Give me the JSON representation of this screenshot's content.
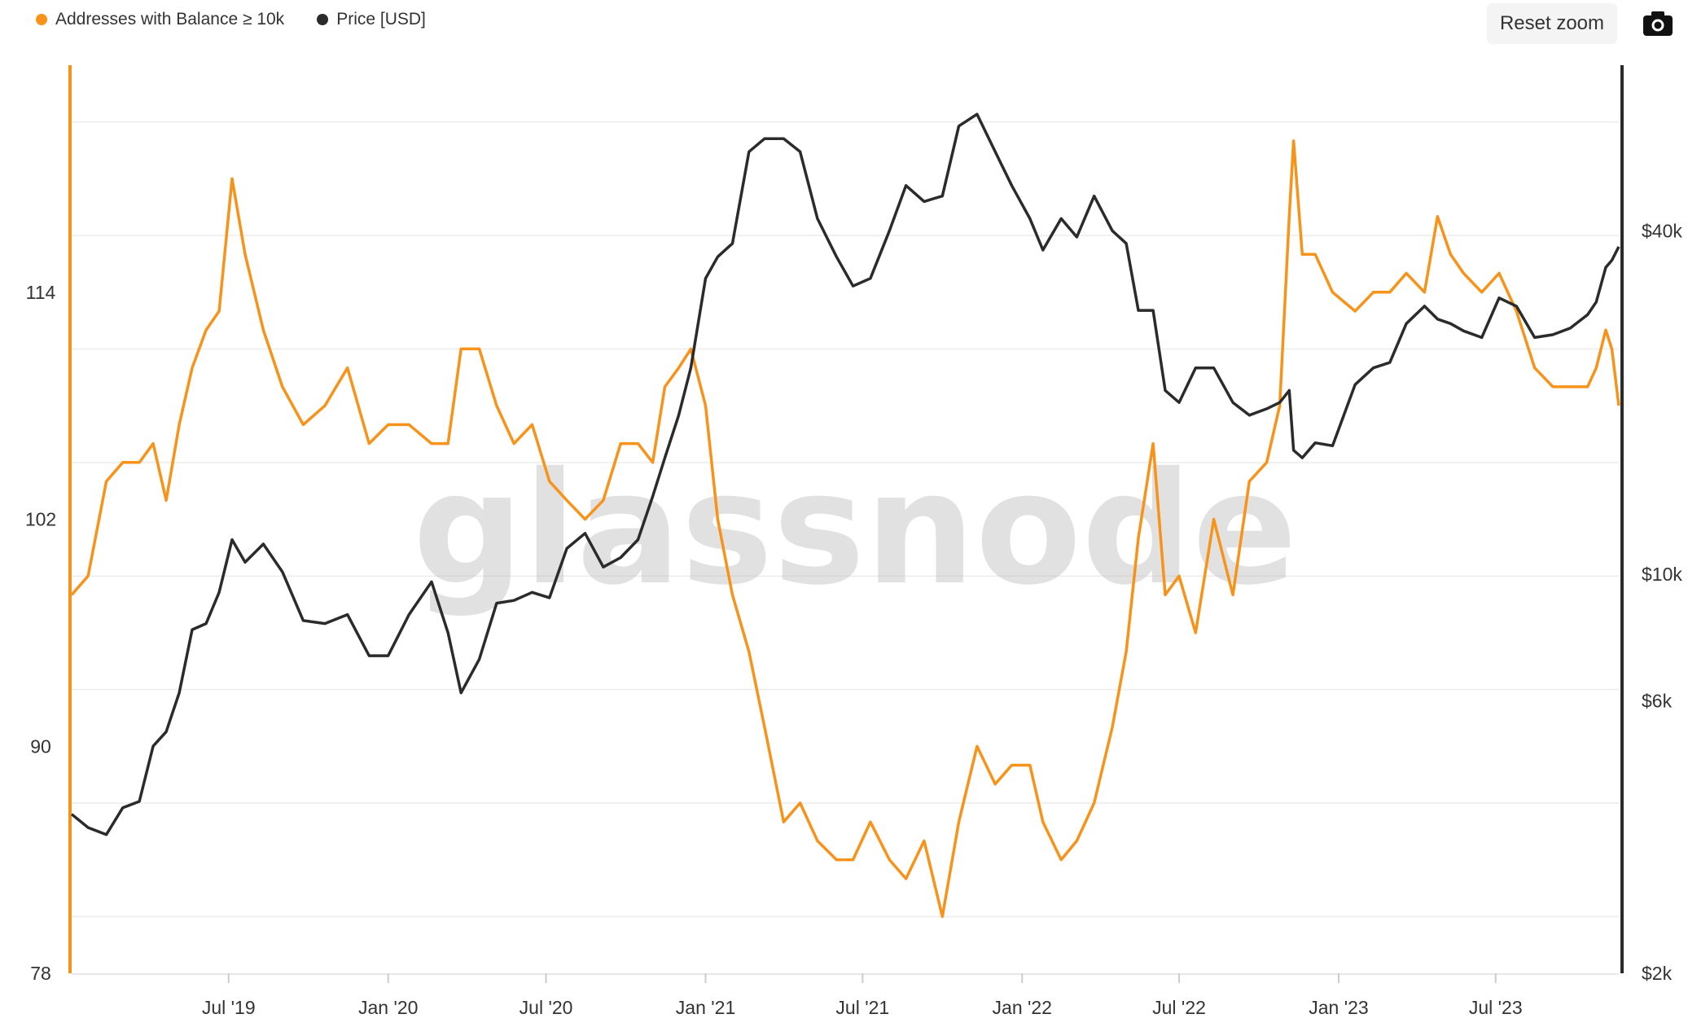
{
  "legend": [
    {
      "label": "Addresses with Balance ≥ 10k",
      "color": "#f7931a"
    },
    {
      "label": "Price [USD]",
      "color": "#2b2b2b"
    }
  ],
  "toolbar": {
    "reset_label": "Reset zoom",
    "camera_icon": "camera-icon"
  },
  "watermark": "glassnode",
  "chart_data": {
    "type": "line",
    "x_ticks": [
      "Jul '19",
      "Jan '20",
      "Jul '20",
      "Jan '21",
      "Jul '21",
      "Jan '22",
      "Jul '22",
      "Jan '23",
      "Jul '23"
    ],
    "y_left": {
      "ticks": [
        78,
        90,
        102,
        114
      ],
      "range": [
        78,
        126
      ],
      "color": "#f7931a"
    },
    "y_right": {
      "ticks": [
        "$2k",
        "$6k",
        "$10k",
        "$40k"
      ],
      "tick_values": [
        2000,
        6000,
        10000,
        40000
      ],
      "scale": "log",
      "range": [
        2000,
        78000
      ],
      "color": "#2b2b2b"
    },
    "x_range": [
      "2019-01-01",
      "2023-11-20"
    ],
    "grid": true,
    "series": [
      {
        "name": "Addresses with Balance ≥ 10k",
        "axis": "left",
        "color": "#f7931a",
        "x": [
          "2019-01-01",
          "2019-01-20",
          "2019-02-10",
          "2019-03-01",
          "2019-03-20",
          "2019-04-05",
          "2019-04-20",
          "2019-05-05",
          "2019-05-20",
          "2019-06-05",
          "2019-06-20",
          "2019-07-05",
          "2019-07-20",
          "2019-08-10",
          "2019-09-01",
          "2019-09-25",
          "2019-10-20",
          "2019-11-15",
          "2019-12-10",
          "2020-01-01",
          "2020-01-25",
          "2020-02-20",
          "2020-03-10",
          "2020-03-25",
          "2020-04-15",
          "2020-05-05",
          "2020-05-25",
          "2020-06-15",
          "2020-07-05",
          "2020-07-25",
          "2020-08-15",
          "2020-09-05",
          "2020-09-25",
          "2020-10-15",
          "2020-11-01",
          "2020-11-15",
          "2020-12-01",
          "2020-12-15",
          "2021-01-01",
          "2021-01-15",
          "2021-02-01",
          "2021-02-20",
          "2021-03-10",
          "2021-04-01",
          "2021-04-20",
          "2021-05-10",
          "2021-06-01",
          "2021-06-20",
          "2021-07-10",
          "2021-08-01",
          "2021-08-20",
          "2021-09-10",
          "2021-10-01",
          "2021-10-20",
          "2021-11-10",
          "2021-12-01",
          "2021-12-20",
          "2022-01-10",
          "2022-01-25",
          "2022-02-15",
          "2022-03-05",
          "2022-03-25",
          "2022-04-15",
          "2022-05-01",
          "2022-05-15",
          "2022-06-01",
          "2022-06-15",
          "2022-07-01",
          "2022-07-20",
          "2022-08-10",
          "2022-09-01",
          "2022-09-20",
          "2022-10-10",
          "2022-10-25",
          "2022-11-05",
          "2022-11-10",
          "2022-11-20",
          "2022-12-05",
          "2022-12-25",
          "2023-01-20",
          "2023-02-10",
          "2023-03-01",
          "2023-03-20",
          "2023-04-10",
          "2023-04-25",
          "2023-05-10",
          "2023-05-25",
          "2023-06-15",
          "2023-07-05",
          "2023-07-25",
          "2023-08-15",
          "2023-09-05",
          "2023-09-25",
          "2023-10-15",
          "2023-10-25",
          "2023-11-05",
          "2023-11-12",
          "2023-11-20"
        ],
        "values": [
          98,
          99,
          104,
          105,
          105,
          106,
          103,
          107,
          110,
          112,
          113,
          120,
          116,
          112,
          109,
          107,
          108,
          110,
          106,
          107,
          107,
          106,
          106,
          111,
          111,
          108,
          106,
          107,
          104,
          103,
          102,
          103,
          106,
          106,
          105,
          109,
          110,
          111,
          108,
          102,
          98,
          95,
          91,
          86,
          87,
          85,
          84,
          84,
          86,
          84,
          83,
          85,
          81,
          86,
          90,
          88,
          89,
          89,
          86,
          84,
          85,
          87,
          91,
          95,
          101,
          106,
          98,
          99,
          96,
          102,
          98,
          104,
          105,
          108,
          118,
          122,
          116,
          116,
          114,
          113,
          114,
          114,
          115,
          114,
          118,
          116,
          115,
          114,
          115,
          113,
          110,
          109,
          109,
          109,
          110,
          112,
          111,
          108
        ]
      },
      {
        "name": "Price [USD]",
        "axis": "right",
        "color": "#2b2b2b",
        "x": [
          "2019-01-01",
          "2019-01-20",
          "2019-02-10",
          "2019-03-01",
          "2019-03-20",
          "2019-04-05",
          "2019-04-20",
          "2019-05-05",
          "2019-05-20",
          "2019-06-05",
          "2019-06-20",
          "2019-07-05",
          "2019-07-20",
          "2019-08-10",
          "2019-09-01",
          "2019-09-25",
          "2019-10-20",
          "2019-11-15",
          "2019-12-10",
          "2020-01-01",
          "2020-01-25",
          "2020-02-20",
          "2020-03-10",
          "2020-03-25",
          "2020-04-15",
          "2020-05-05",
          "2020-05-25",
          "2020-06-15",
          "2020-07-05",
          "2020-07-25",
          "2020-08-15",
          "2020-09-05",
          "2020-09-25",
          "2020-10-15",
          "2020-11-01",
          "2020-11-15",
          "2020-12-01",
          "2020-12-15",
          "2021-01-01",
          "2021-01-15",
          "2021-02-01",
          "2021-02-20",
          "2021-03-10",
          "2021-04-01",
          "2021-04-20",
          "2021-05-10",
          "2021-06-01",
          "2021-06-20",
          "2021-07-10",
          "2021-08-01",
          "2021-08-20",
          "2021-09-10",
          "2021-10-01",
          "2021-10-20",
          "2021-11-10",
          "2021-12-01",
          "2021-12-20",
          "2022-01-10",
          "2022-01-25",
          "2022-02-15",
          "2022-03-05",
          "2022-03-25",
          "2022-04-15",
          "2022-05-01",
          "2022-05-15",
          "2022-06-01",
          "2022-06-15",
          "2022-07-01",
          "2022-07-20",
          "2022-08-10",
          "2022-09-01",
          "2022-09-20",
          "2022-10-10",
          "2022-10-25",
          "2022-11-05",
          "2022-11-10",
          "2022-11-20",
          "2022-12-05",
          "2022-12-25",
          "2023-01-20",
          "2023-02-10",
          "2023-03-01",
          "2023-03-20",
          "2023-04-10",
          "2023-04-25",
          "2023-05-10",
          "2023-05-25",
          "2023-06-15",
          "2023-07-05",
          "2023-07-25",
          "2023-08-15",
          "2023-09-05",
          "2023-09-25",
          "2023-10-15",
          "2023-10-25",
          "2023-11-05",
          "2023-11-12",
          "2023-11-20"
        ],
        "values": [
          3800,
          3600,
          3500,
          3900,
          4000,
          5000,
          5300,
          6200,
          8000,
          8200,
          9300,
          11500,
          10500,
          11300,
          10100,
          8300,
          8200,
          8500,
          7200,
          7200,
          8500,
          9700,
          7900,
          6200,
          7100,
          8900,
          9000,
          9300,
          9100,
          11100,
          11800,
          10300,
          10700,
          11500,
          13700,
          16000,
          19000,
          23000,
          33000,
          36000,
          38000,
          55000,
          58000,
          58000,
          55000,
          42000,
          36000,
          32000,
          33000,
          40000,
          48000,
          45000,
          46000,
          61000,
          64000,
          55000,
          48000,
          42000,
          37000,
          42000,
          39000,
          46000,
          40000,
          38000,
          29000,
          29000,
          21000,
          20000,
          23000,
          23000,
          20000,
          19000,
          19500,
          20000,
          21000,
          16500,
          16000,
          17000,
          16800,
          21500,
          23000,
          23500,
          27500,
          29500,
          28000,
          27500,
          26700,
          26000,
          30500,
          29500,
          26000,
          26300,
          27000,
          28500,
          30000,
          34500,
          35500,
          37500
        ]
      }
    ]
  }
}
